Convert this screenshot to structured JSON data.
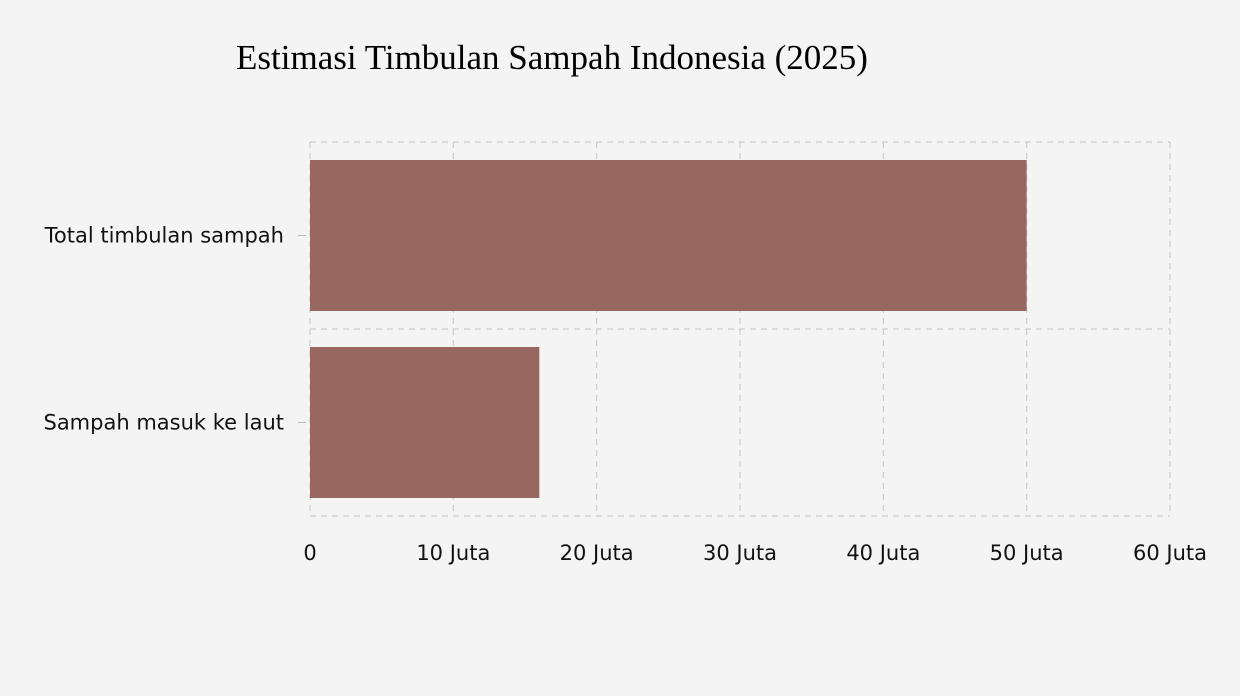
{
  "chart_data": {
    "type": "bar",
    "orientation": "horizontal",
    "title": "Estimasi Timbulan Sampah Indonesia (2025)",
    "categories": [
      "Total timbulan sampah",
      "Sampah masuk ke laut"
    ],
    "values": [
      50000000,
      16000000
    ],
    "xlim": [
      0,
      60000000
    ],
    "xticks": [
      0,
      10000000,
      20000000,
      30000000,
      40000000,
      50000000,
      60000000
    ],
    "xtick_labels": [
      "0",
      "10 Juta",
      "20 Juta",
      "30 Juta",
      "40 Juta",
      "50 Juta",
      "60 Juta"
    ],
    "grid": true,
    "grid_style": "dashed",
    "bar_color": "#98675f",
    "xlabel": "",
    "ylabel": ""
  }
}
